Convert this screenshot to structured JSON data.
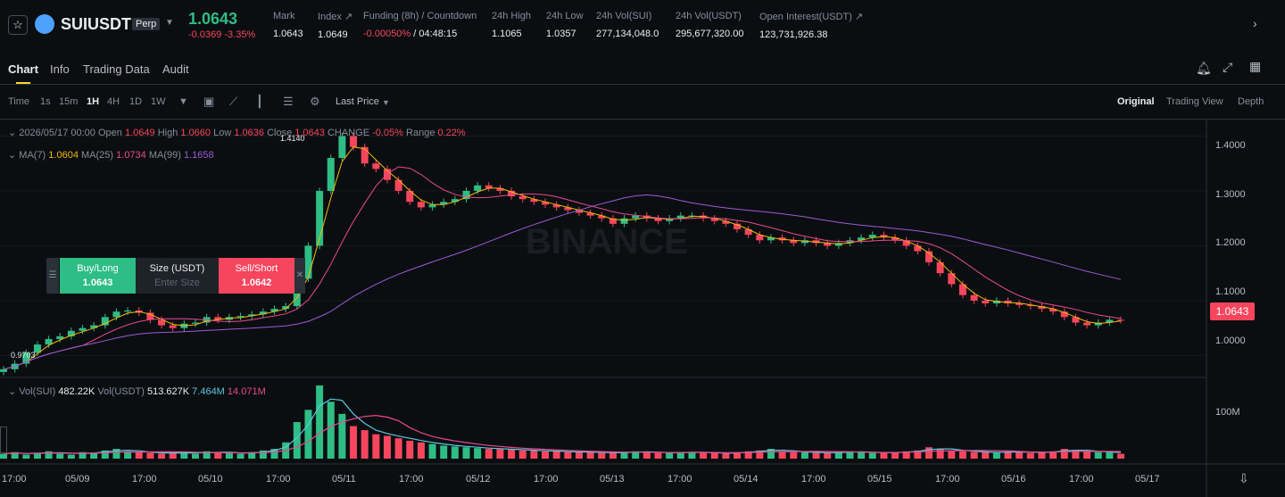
{
  "header": {
    "star_icon": "star-icon",
    "symbol": "SUIUSDT",
    "badge": "Perp",
    "last_price": "1.0643",
    "change": "-0.0369 -3.35%",
    "stats": [
      {
        "label": "Mark",
        "value": "1.0643"
      },
      {
        "label": "Index ↗",
        "value": "1.0649"
      },
      {
        "label": "Funding (8h) / Countdown",
        "value_a": "-0.00050%",
        "value_b": " / 04:48:15"
      },
      {
        "label": "24h High",
        "value": "1.1065"
      },
      {
        "label": "24h Low",
        "value": "1.0357"
      },
      {
        "label": "24h Vol(SUI)",
        "value": "277,134,048.0"
      },
      {
        "label": "24h Vol(USDT)",
        "value": "295,677,320.00"
      },
      {
        "label": "Open Interest(USDT) ↗",
        "value": "123,731,926.38"
      }
    ]
  },
  "tabs": [
    "Chart",
    "Info",
    "Trading Data",
    "Audit"
  ],
  "toolbar": {
    "time_label": "Time",
    "intervals": [
      "1s",
      "15m",
      "1H",
      "4H",
      "1D",
      "1W"
    ],
    "active_interval": "1H",
    "price_type": "Last Price",
    "views": [
      "Original",
      "Trading View",
      "Depth"
    ],
    "active_view": "Original"
  },
  "legend": {
    "date": "2026/05/17 00:00",
    "open_label": "Open",
    "open": "1.0649",
    "high_label": "High",
    "high": "1.0660",
    "low_label": "Low",
    "low": "1.0636",
    "close_label": "Close",
    "close": "1.0643",
    "change_label": "CHANGE",
    "change": "-0.05%",
    "range_label": "Range",
    "range": "0.22%",
    "ma7_label": "MA(7)",
    "ma7": "1.0604",
    "ma25_label": "MA(25)",
    "ma25": "1.0734",
    "ma99_label": "MA(99)",
    "ma99": "1.1658",
    "vol_label": "Vol(SUI)",
    "vol_sui": "482.22K",
    "volusdt_label": "Vol(USDT)",
    "vol_usdt": "513.627K",
    "vol_ma1": "7.464M",
    "vol_ma2": "14.071M"
  },
  "trade_box": {
    "buy_label": "Buy/Long",
    "buy_price": "1.0643",
    "size_label": "Size (USDT)",
    "size_placeholder": "Enter Size",
    "sell_label": "Sell/Short",
    "sell_price": "1.0642"
  },
  "annotations": {
    "max": "1.4140",
    "min": "0.9703"
  },
  "current_price_tag": "1.0643",
  "watermark": "BINANCE",
  "colors": {
    "up": "#2ebd85",
    "down": "#f6465d",
    "ma7": "#f0b90b",
    "ma25": "#e84a8f",
    "ma99": "#9c5bd6",
    "accent": "#fcd535"
  },
  "chart_data": {
    "type": "candlestick",
    "interval": "1H",
    "y_ticks": [
      "1.4000",
      "1.3000",
      "1.2000",
      "1.1000",
      "1.0000"
    ],
    "ylim": [
      0.96,
      1.43
    ],
    "x_ticks": [
      "17:00",
      "05/09",
      "17:00",
      "05/10",
      "17:00",
      "05/11",
      "17:00",
      "05/12",
      "17:00",
      "05/13",
      "17:00",
      "05/14",
      "17:00",
      "05/15",
      "17:00",
      "05/16",
      "17:00",
      "05/17"
    ],
    "vol_ticks": [
      "100M"
    ],
    "close_path": [
      0.975,
      0.985,
      1.005,
      1.02,
      1.03,
      1.035,
      1.045,
      1.05,
      1.055,
      1.07,
      1.08,
      1.082,
      1.078,
      1.065,
      1.055,
      1.05,
      1.058,
      1.06,
      1.07,
      1.065,
      1.07,
      1.072,
      1.075,
      1.08,
      1.085,
      1.09,
      1.14,
      1.2,
      1.3,
      1.36,
      1.4,
      1.38,
      1.35,
      1.34,
      1.32,
      1.3,
      1.28,
      1.27,
      1.275,
      1.28,
      1.285,
      1.3,
      1.31,
      1.305,
      1.3,
      1.29,
      1.285,
      1.28,
      1.275,
      1.27,
      1.265,
      1.26,
      1.255,
      1.25,
      1.24,
      1.25,
      1.255,
      1.25,
      1.245,
      1.25,
      1.255,
      1.255,
      1.25,
      1.245,
      1.24,
      1.23,
      1.22,
      1.21,
      1.215,
      1.21,
      1.205,
      1.21,
      1.205,
      1.2,
      1.205,
      1.21,
      1.215,
      1.22,
      1.215,
      1.21,
      1.2,
      1.19,
      1.17,
      1.15,
      1.13,
      1.11,
      1.1,
      1.095,
      1.1,
      1.095,
      1.092,
      1.09,
      1.085,
      1.08,
      1.07,
      1.06,
      1.055,
      1.06,
      1.065,
      1.0643
    ],
    "volume_path": [
      6,
      8,
      5,
      7,
      9,
      6,
      5,
      8,
      7,
      10,
      12,
      9,
      8,
      7,
      6,
      8,
      7,
      6,
      9,
      8,
      7,
      6,
      8,
      10,
      12,
      20,
      45,
      60,
      90,
      70,
      55,
      40,
      35,
      30,
      28,
      25,
      22,
      20,
      18,
      16,
      15,
      14,
      13,
      12,
      12,
      11,
      10,
      10,
      9,
      9,
      8,
      8,
      8,
      7,
      7,
      8,
      9,
      8,
      7,
      7,
      8,
      8,
      7,
      7,
      6,
      8,
      9,
      10,
      12,
      9,
      8,
      8,
      7,
      7,
      8,
      9,
      8,
      7,
      7,
      8,
      9,
      10,
      14,
      12,
      10,
      9,
      8,
      8,
      7,
      9,
      8,
      7,
      8,
      9,
      12,
      10,
      9,
      8,
      8,
      6
    ]
  }
}
